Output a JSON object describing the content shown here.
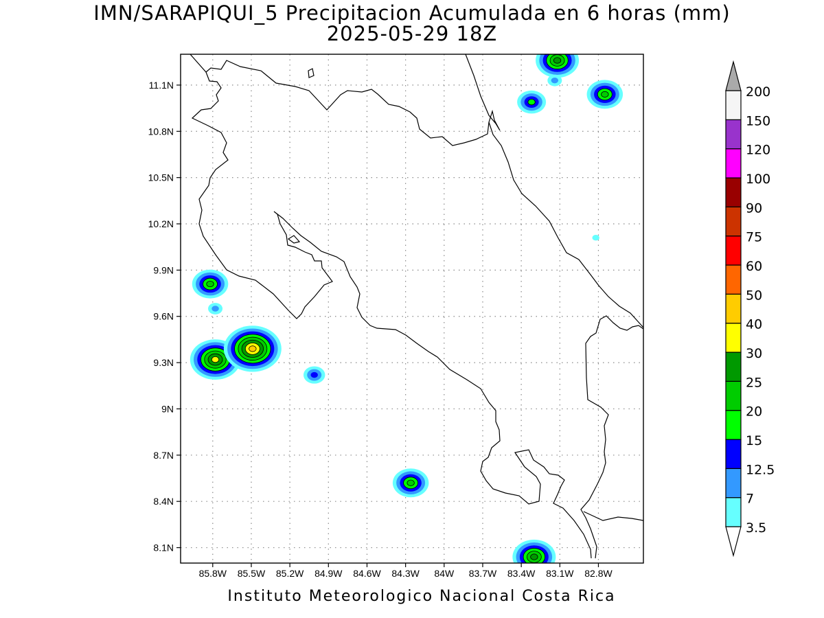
{
  "title": {
    "line1": "IMN/SARAPIQUI_5 Precipitacion Acumulada en 6 horas (mm)",
    "line2": "2025-05-29 18Z"
  },
  "footer": "Instituto Meteorologico Nacional Costa Rica",
  "map": {
    "lon_range": [
      -86.05,
      -82.45
    ],
    "lat_range": [
      8.0,
      11.3
    ],
    "x_ticks": [
      "85.8W",
      "85.5W",
      "85.2W",
      "84.9W",
      "84.6W",
      "84.3W",
      "84W",
      "83.7W",
      "83.4W",
      "83.1W",
      "82.8W"
    ],
    "x_tick_values": [
      -85.8,
      -85.5,
      -85.2,
      -84.9,
      -84.6,
      -84.3,
      -84.0,
      -83.7,
      -83.4,
      -83.1,
      -82.8
    ],
    "y_ticks": [
      "8.1N",
      "8.4N",
      "8.7N",
      "9N",
      "9.3N",
      "9.6N",
      "9.9N",
      "10.2N",
      "10.5N",
      "10.8N",
      "11.1N"
    ],
    "y_tick_values": [
      8.1,
      8.4,
      8.7,
      9.0,
      9.3,
      9.6,
      9.9,
      10.2,
      10.5,
      10.8,
      11.1
    ],
    "grid": true,
    "gridline_style": "dotted"
  },
  "colorbar": {
    "labels": [
      "3.5",
      "7",
      "12.5",
      "15",
      "20",
      "25",
      "30",
      "40",
      "50",
      "60",
      "75",
      "90",
      "100",
      "120",
      "150",
      "200"
    ],
    "colors": [
      "#ffffff",
      "#66ffff",
      "#3399ff",
      "#0000ff",
      "#00ff00",
      "#00cc00",
      "#009900",
      "#ffff00",
      "#ffcc00",
      "#ff6600",
      "#ff0000",
      "#cc3300",
      "#990000",
      "#ff00ff",
      "#9933cc",
      "#f5f5f5",
      "#aaaaaa"
    ]
  },
  "precip_cells": [
    {
      "lon": -85.78,
      "lat": 9.32,
      "max_mm": 30
    },
    {
      "lon": -85.49,
      "lat": 9.39,
      "max_mm": 40
    },
    {
      "lon": -85.82,
      "lat": 9.81,
      "max_mm": 20
    },
    {
      "lon": -85.78,
      "lat": 9.65,
      "max_mm": 7
    },
    {
      "lon": -85.01,
      "lat": 9.22,
      "max_mm": 12.5
    },
    {
      "lon": -84.26,
      "lat": 8.52,
      "max_mm": 20
    },
    {
      "lon": -83.3,
      "lat": 8.04,
      "max_mm": 25
    },
    {
      "lon": -83.32,
      "lat": 10.99,
      "max_mm": 15
    },
    {
      "lon": -83.12,
      "lat": 11.26,
      "max_mm": 25
    },
    {
      "lon": -82.75,
      "lat": 11.04,
      "max_mm": 20
    },
    {
      "lon": -83.14,
      "lat": 11.13,
      "max_mm": 7
    },
    {
      "lon": -82.82,
      "lat": 10.11,
      "max_mm": 3.5
    }
  ]
}
